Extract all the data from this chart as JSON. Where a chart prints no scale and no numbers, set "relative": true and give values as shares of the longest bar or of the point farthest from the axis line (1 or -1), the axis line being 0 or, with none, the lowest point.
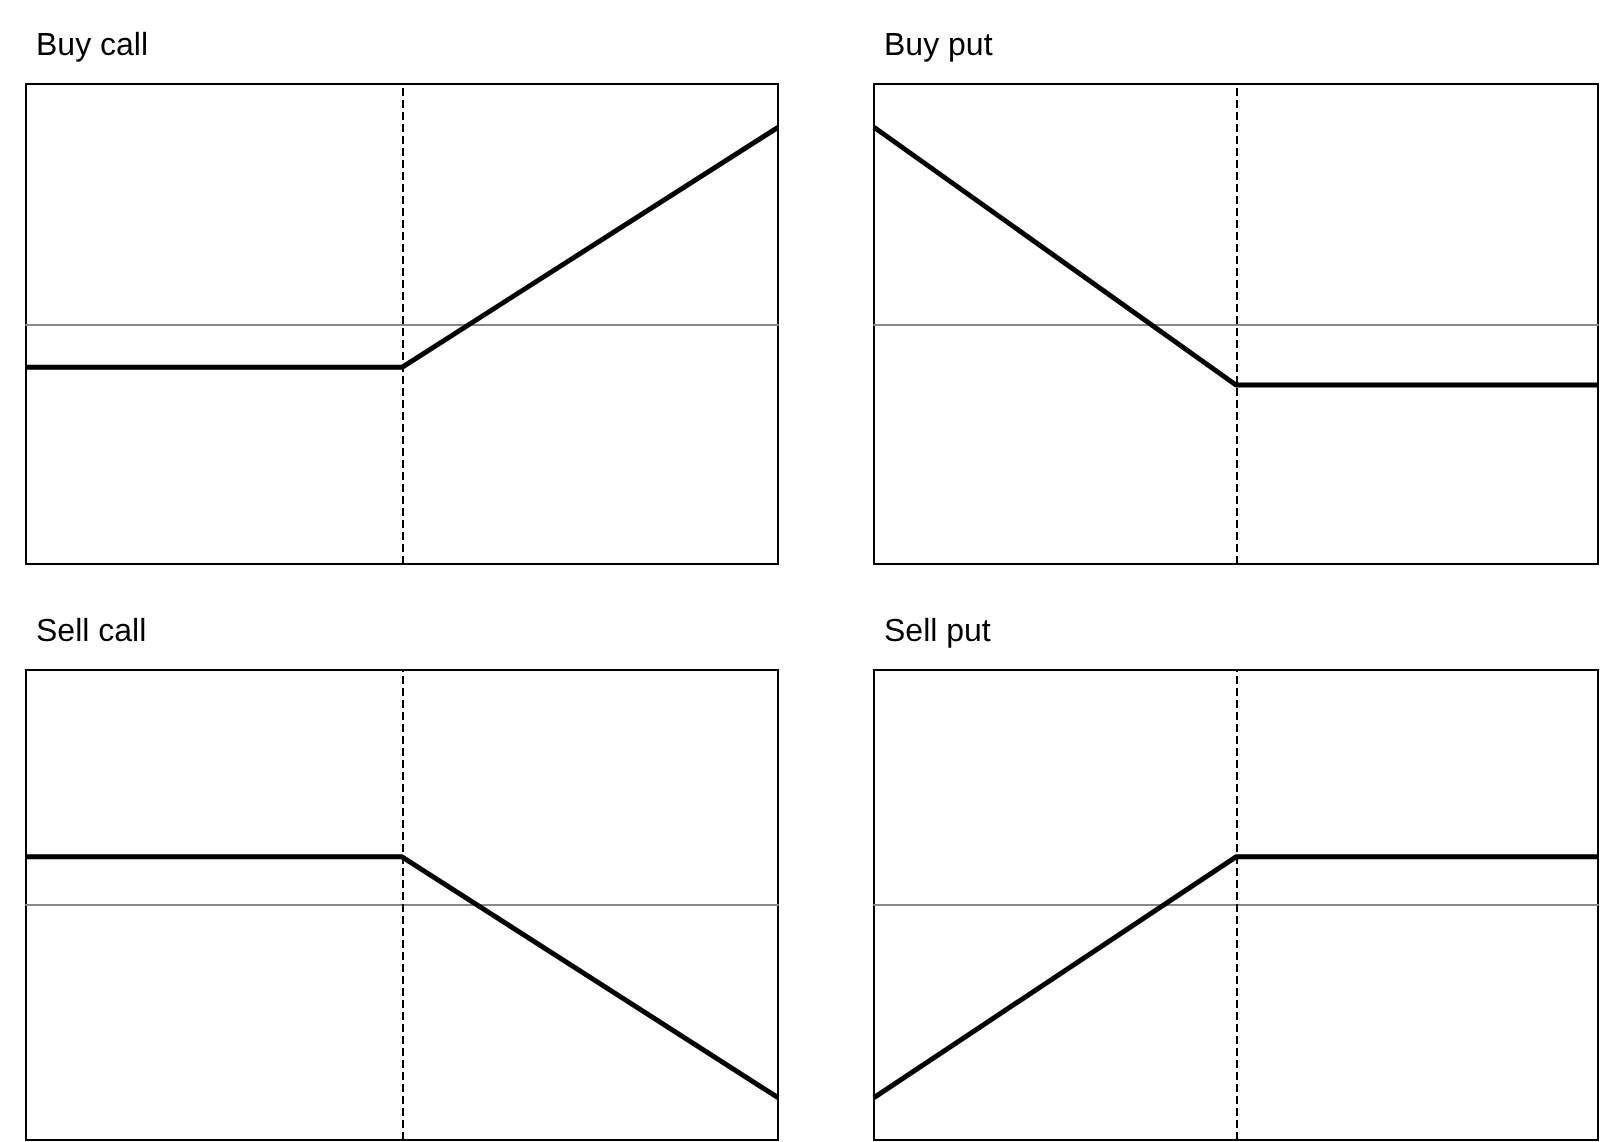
{
  "chart_data": [
    {
      "type": "line",
      "title": "Buy call",
      "relative": true,
      "categories": [
        null,
        null,
        null
      ],
      "values": [
        -0.22,
        -0.22,
        1
      ],
      "color": "#000000",
      "marker": "none",
      "tick_labels": false
    },
    {
      "type": "line",
      "title": "Buy put",
      "relative": true,
      "categories": [
        null,
        null,
        null
      ],
      "values": [
        1,
        -0.31,
        -0.31
      ],
      "color": "#000000",
      "marker": "none",
      "tick_labels": false
    },
    {
      "type": "line",
      "title": "Sell call",
      "relative": true,
      "categories": [
        null,
        null,
        null
      ],
      "values": [
        0.25,
        0.25,
        -1
      ],
      "color": "#000000",
      "marker": "none",
      "tick_labels": false
    },
    {
      "type": "line",
      "title": "Sell put",
      "relative": true,
      "categories": [
        null,
        null,
        null
      ],
      "values": [
        -1,
        0.25,
        0.25
      ],
      "color": "#000000",
      "marker": "none",
      "tick_labels": false
    }
  ]
}
